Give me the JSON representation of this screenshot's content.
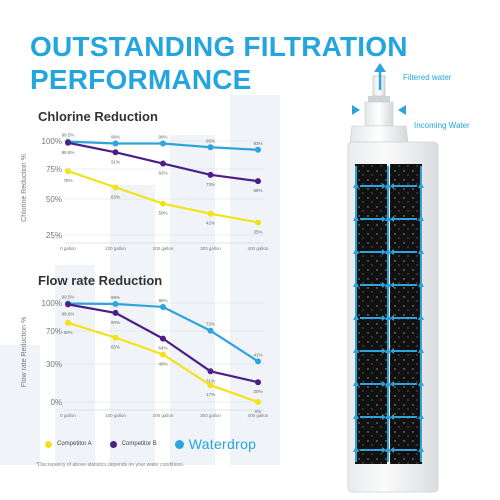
{
  "headline": {
    "line1": "OUTSTANDING FILTRATION",
    "line2": "PERFORMANCE"
  },
  "colors": {
    "competitor_a": "#f2e21a",
    "competitor_b": "#4e1e88",
    "waterdrop": "#2fa3dc",
    "headline": "#23a5de"
  },
  "legend": {
    "competitor_a": "Competitor A",
    "competitor_b": "Competitor B",
    "waterdrop": "Waterdrop"
  },
  "disclaimer": "*Discrepancy of above statistics depends on your water conditions.",
  "filter_labels": {
    "top": "Filtered water",
    "side": "Incoming Water"
  },
  "chart_data": [
    {
      "type": "line",
      "title": "Chlorine Reduction",
      "ylabel": "Chlorine Reduction %",
      "categories": [
        "0 gallon",
        "100 gallon",
        "200 gallon",
        "300 gallon",
        "400 gallon"
      ],
      "ytick_labels": [
        "100%",
        "75%",
        "50%",
        "25%"
      ],
      "ylim": [
        25,
        100
      ],
      "series": [
        {
          "name": "Waterdrop",
          "values": [
            99.5,
            98,
            98,
            95,
            93
          ],
          "labels": [
            "99.5%",
            "98%",
            "98%",
            "95%",
            "93%"
          ]
        },
        {
          "name": "Competitor B",
          "values": [
            98.6,
            91,
            82,
            73,
            68
          ],
          "labels": [
            "98.6%",
            "91%",
            "82%",
            "73%",
            "68%"
          ]
        },
        {
          "name": "Competitor A",
          "values": [
            76,
            63,
            50,
            42,
            35
          ],
          "labels": [
            "76%",
            "63%",
            "50%",
            "42%",
            "35%"
          ]
        }
      ]
    },
    {
      "type": "line",
      "title": "Flow rate Reduction",
      "ylabel": "Flow rate Reduction %",
      "categories": [
        "0 gallon",
        "100 gallon",
        "200 gallon",
        "300 gallon",
        "400 gallon"
      ],
      "ytick_labels": [
        "100%",
        "70%",
        "30%",
        "0%"
      ],
      "ylim": [
        0,
        100
      ],
      "series": [
        {
          "name": "Waterdrop",
          "values": [
            99.5,
            99,
            96,
            72,
            41
          ],
          "labels": [
            "99.5%",
            "99%",
            "96%",
            "72%",
            "41%"
          ]
        },
        {
          "name": "Competitor B",
          "values": [
            98.6,
            90,
            64,
            31,
            20
          ],
          "labels": [
            "98.6%",
            "90%",
            "64%",
            "31%",
            "20%"
          ]
        },
        {
          "name": "Competitor A",
          "values": [
            80,
            65,
            48,
            17,
            0
          ],
          "labels": [
            "80%",
            "65%",
            "48%",
            "17%",
            "0%"
          ]
        }
      ]
    }
  ]
}
